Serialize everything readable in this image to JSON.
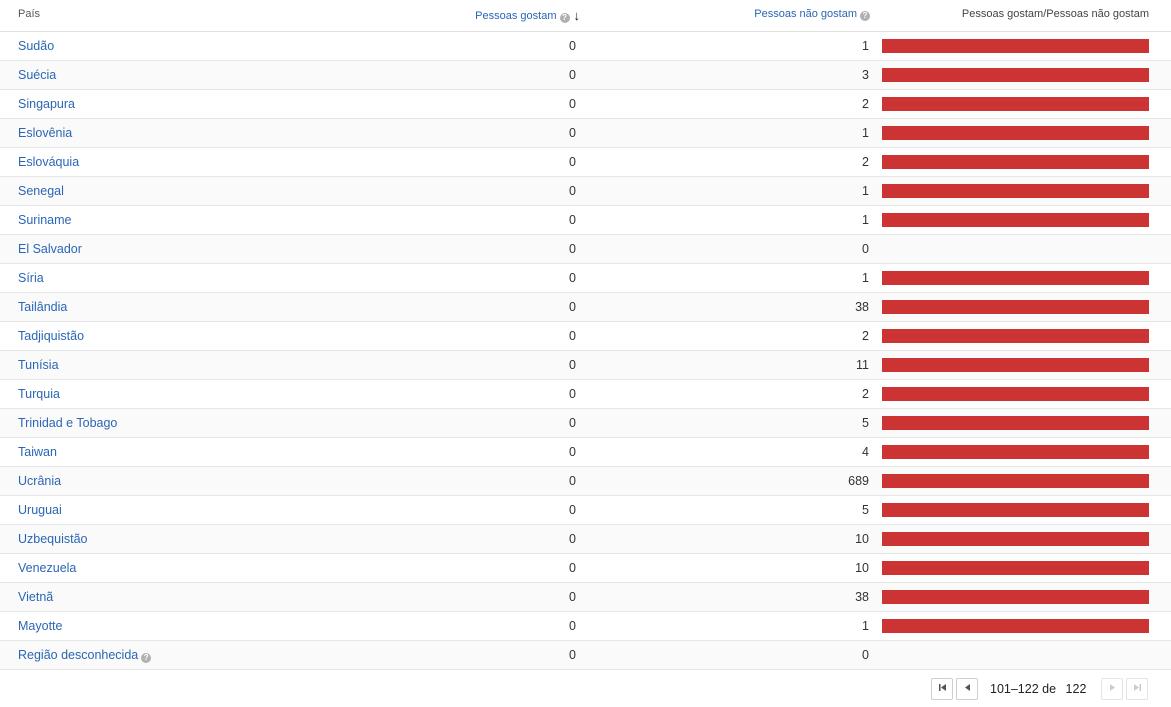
{
  "header": {
    "country": "País",
    "likes": "Pessoas gostam",
    "dislikes": "Pessoas não gostam",
    "ratio": "Pessoas gostam/Pessoas não gostam",
    "help_icon": "?",
    "sort_icon": "↓"
  },
  "bar_color": "#cc3333",
  "rows": [
    {
      "country": "Sudão",
      "likes": "0",
      "dislikes": "1",
      "dislike_share": 1
    },
    {
      "country": "Suécia",
      "likes": "0",
      "dislikes": "3",
      "dislike_share": 1
    },
    {
      "country": "Singapura",
      "likes": "0",
      "dislikes": "2",
      "dislike_share": 1
    },
    {
      "country": "Eslovênia",
      "likes": "0",
      "dislikes": "1",
      "dislike_share": 1
    },
    {
      "country": "Eslováquia",
      "likes": "0",
      "dislikes": "2",
      "dislike_share": 1
    },
    {
      "country": "Senegal",
      "likes": "0",
      "dislikes": "1",
      "dislike_share": 1
    },
    {
      "country": "Suriname",
      "likes": "0",
      "dislikes": "1",
      "dislike_share": 1
    },
    {
      "country": "El Salvador",
      "likes": "0",
      "dislikes": "0",
      "dislike_share": 0
    },
    {
      "country": "Síria",
      "likes": "0",
      "dislikes": "1",
      "dislike_share": 1
    },
    {
      "country": "Tailândia",
      "likes": "0",
      "dislikes": "38",
      "dislike_share": 1
    },
    {
      "country": "Tadjiquistão",
      "likes": "0",
      "dislikes": "2",
      "dislike_share": 1
    },
    {
      "country": "Tunísia",
      "likes": "0",
      "dislikes": "11",
      "dislike_share": 1
    },
    {
      "country": "Turquia",
      "likes": "0",
      "dislikes": "2",
      "dislike_share": 1
    },
    {
      "country": "Trinidad e Tobago",
      "likes": "0",
      "dislikes": "5",
      "dislike_share": 1
    },
    {
      "country": "Taiwan",
      "likes": "0",
      "dislikes": "4",
      "dislike_share": 1
    },
    {
      "country": "Ucrânia",
      "likes": "0",
      "dislikes": "689",
      "dislike_share": 1
    },
    {
      "country": "Uruguai",
      "likes": "0",
      "dislikes": "5",
      "dislike_share": 1
    },
    {
      "country": "Uzbequistão",
      "likes": "0",
      "dislikes": "10",
      "dislike_share": 1
    },
    {
      "country": "Venezuela",
      "likes": "0",
      "dislikes": "10",
      "dislike_share": 1
    },
    {
      "country": "Vietnã",
      "likes": "0",
      "dislikes": "38",
      "dislike_share": 1
    },
    {
      "country": "Mayotte",
      "likes": "0",
      "dislikes": "1",
      "dislike_share": 1
    },
    {
      "country": "Região desconhecida",
      "likes": "0",
      "dislikes": "0",
      "dislike_share": 0,
      "help": true
    }
  ],
  "pager": {
    "range": "101–122",
    "of": "de",
    "total": "122",
    "first_icon": "first-page-icon",
    "prev_icon": "prev-page-icon",
    "next_icon": "next-page-icon",
    "last_icon": "last-page-icon"
  }
}
